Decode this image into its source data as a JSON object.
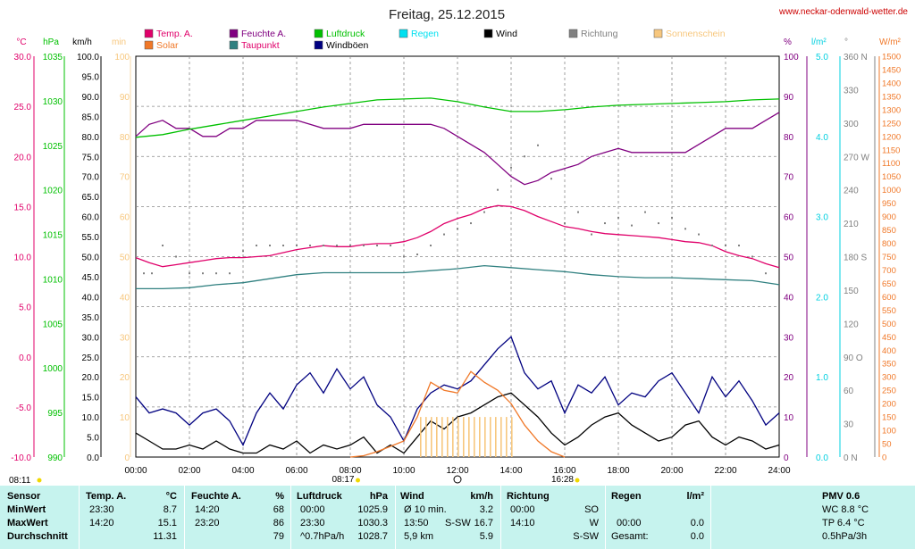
{
  "title": "Freitag, 25.12.2015",
  "site": "www.neckar-odenwald-wetter.de",
  "legend": [
    {
      "label": "Temp. A.",
      "color": "#e0006a",
      "text_color": "#e0006a"
    },
    {
      "label": "Feuchte A.",
      "color": "#800080",
      "text_color": "#800080"
    },
    {
      "label": "Luftdruck",
      "color": "#00c000",
      "text_color": "#00c000"
    },
    {
      "label": "Regen",
      "color": "#00e0f0",
      "text_color": "#00e0f0"
    },
    {
      "label": "Wind",
      "color": "#000000",
      "text_color": "#000000"
    },
    {
      "label": "Richtung",
      "color": "#808080",
      "text_color": "#808080"
    },
    {
      "label": "Sonnenschein",
      "color": "#f7c77e",
      "text_color": "#f7c77e"
    },
    {
      "label": "Solar",
      "color": "#f07828",
      "text_color": "#f07828"
    },
    {
      "label": "Taupunkt",
      "color": "#308080",
      "text_color": "#e0006a"
    },
    {
      "label": "Windböen",
      "color": "#000080",
      "text_color": "#000000"
    }
  ],
  "chart_data": {
    "type": "line",
    "x_ticks": [
      "00:00",
      "02:00",
      "04:00",
      "06:00",
      "08:00",
      "10:00",
      "12:00",
      "14:00",
      "16:00",
      "18:00",
      "20:00",
      "22:00",
      "24:00"
    ],
    "axes": {
      "temp": {
        "unit": "°C",
        "color": "#e0006a",
        "ticks": [
          "30.0",
          "25.0",
          "20.0",
          "15.0",
          "10.0",
          "5.0",
          "0.0",
          "-5.0",
          "-10.0"
        ]
      },
      "pressure": {
        "unit": "hPa",
        "color": "#00c000",
        "ticks": [
          "1035",
          "1030",
          "1025",
          "1020",
          "1015",
          "1010",
          "1005",
          "1000",
          "995",
          "990"
        ]
      },
      "wind": {
        "unit": "km/h",
        "color": "#000000",
        "ticks": [
          "100.0",
          "95.0",
          "90.0",
          "85.0",
          "80.0",
          "75.0",
          "70.0",
          "65.0",
          "60.0",
          "55.0",
          "50.0",
          "45.0",
          "40.0",
          "35.0",
          "30.0",
          "25.0",
          "20.0",
          "15.0",
          "10.0",
          "5.0",
          "0.0"
        ]
      },
      "sun": {
        "unit": "min",
        "color": "#f7c77e",
        "ticks": [
          "100",
          "90",
          "80",
          "70",
          "60",
          "50",
          "40",
          "30",
          "20",
          "10",
          "0"
        ]
      },
      "humidity": {
        "unit": "%",
        "color": "#800080",
        "ticks": [
          "100",
          "90",
          "80",
          "70",
          "60",
          "50",
          "40",
          "30",
          "20",
          "10",
          "0"
        ]
      },
      "rain": {
        "unit": "l/m²",
        "color": "#00d0e0",
        "ticks": [
          "5.0",
          "4.0",
          "3.0",
          "2.0",
          "1.0",
          "0.0"
        ]
      },
      "direction": {
        "unit": "°",
        "color": "#808080",
        "ticks": [
          "360 N",
          "330",
          "300",
          "270 W",
          "240",
          "210",
          "180 S",
          "150",
          "120",
          "90 O",
          "60",
          "30",
          "0 N"
        ]
      },
      "solar": {
        "unit": "W/m²",
        "color": "#f07828",
        "ticks": [
          "1500",
          "1450",
          "1400",
          "1350",
          "1300",
          "1250",
          "1200",
          "1150",
          "1100",
          "1050",
          "1000",
          "950",
          "900",
          "850",
          "800",
          "750",
          "700",
          "650",
          "600",
          "550",
          "500",
          "450",
          "400",
          "350",
          "300",
          "250",
          "200",
          "150",
          "100",
          "50",
          "0"
        ]
      }
    },
    "markers": {
      "sunrise": "08:17",
      "sunset": "16:28",
      "sunrise_left": "08:11"
    },
    "series": [
      {
        "name": "Temp. A.",
        "axis": "temp",
        "color": "#e0006a",
        "x": [
          0,
          0.5,
          1,
          1.5,
          2,
          2.5,
          3,
          3.5,
          4,
          4.5,
          5,
          5.5,
          6,
          6.5,
          7,
          7.5,
          8,
          8.5,
          9,
          9.5,
          10,
          10.5,
          11,
          11.5,
          12,
          12.5,
          13,
          13.5,
          14,
          14.5,
          15,
          15.5,
          16,
          16.5,
          17,
          17.5,
          18,
          18.5,
          19,
          19.5,
          20,
          20.5,
          21,
          21.5,
          22,
          22.5,
          23,
          23.5,
          24
        ],
        "y": [
          9.9,
          9.4,
          9.0,
          9.2,
          9.4,
          9.6,
          9.8,
          9.9,
          9.9,
          10.0,
          10.1,
          10.4,
          10.7,
          10.9,
          11.1,
          11.0,
          11.0,
          11.2,
          11.3,
          11.3,
          11.5,
          11.9,
          12.5,
          13.3,
          13.8,
          14.2,
          14.8,
          15.1,
          15.0,
          14.6,
          14.0,
          13.5,
          13.0,
          12.8,
          12.5,
          12.3,
          12.2,
          12.1,
          12.0,
          11.9,
          11.7,
          11.5,
          11.4,
          11.1,
          10.5,
          10.1,
          9.8,
          9.3,
          8.9
        ]
      },
      {
        "name": "Feuchte A.",
        "axis": "humidity",
        "color": "#800080",
        "x": [
          0,
          0.5,
          1,
          1.5,
          2,
          2.5,
          3,
          3.5,
          4,
          4.5,
          5,
          5.5,
          6,
          6.5,
          7,
          7.5,
          8,
          8.5,
          9,
          9.5,
          10,
          10.5,
          11,
          11.5,
          12,
          12.5,
          13,
          13.5,
          14,
          14.5,
          15,
          15.5,
          16,
          16.5,
          17,
          17.5,
          18,
          18.5,
          19,
          19.5,
          20,
          20.5,
          21,
          21.5,
          22,
          22.5,
          23,
          23.5,
          24
        ],
        "y": [
          80,
          83,
          84,
          82,
          82,
          80,
          80,
          82,
          82,
          84,
          84,
          84,
          84,
          83,
          82,
          82,
          82,
          83,
          83,
          83,
          83,
          83,
          83,
          82,
          80,
          78,
          76,
          73,
          70,
          68,
          69,
          71,
          72,
          73,
          75,
          76,
          77,
          76,
          76,
          76,
          76,
          76,
          78,
          80,
          82,
          82,
          82,
          84,
          86
        ]
      },
      {
        "name": "Luftdruck",
        "axis": "pressure",
        "color": "#00c000",
        "x": [
          0,
          1,
          2,
          3,
          4,
          5,
          6,
          7,
          8,
          9,
          10,
          11,
          12,
          13,
          14,
          15,
          16,
          17,
          18,
          19,
          20,
          21,
          22,
          23,
          24
        ],
        "y": [
          1025.9,
          1026.2,
          1026.8,
          1027.3,
          1027.8,
          1028.3,
          1028.8,
          1029.3,
          1029.7,
          1030.1,
          1030.2,
          1030.3,
          1029.9,
          1029.3,
          1028.8,
          1028.8,
          1029.0,
          1029.3,
          1029.5,
          1029.6,
          1029.7,
          1029.8,
          1029.9,
          1030.1,
          1030.2
        ]
      },
      {
        "name": "Taupunkt",
        "axis": "temp",
        "color": "#308080",
        "x": [
          0,
          1,
          2,
          3,
          4,
          5,
          6,
          7,
          8,
          9,
          10,
          11,
          12,
          13,
          14,
          15,
          16,
          17,
          18,
          19,
          20,
          21,
          22,
          23,
          24
        ],
        "y": [
          6.8,
          6.8,
          6.9,
          7.2,
          7.4,
          7.8,
          8.2,
          8.4,
          8.4,
          8.4,
          8.4,
          8.6,
          8.8,
          9.1,
          8.9,
          8.7,
          8.5,
          8.2,
          8.0,
          7.9,
          7.9,
          7.8,
          7.7,
          7.6,
          7.2
        ]
      },
      {
        "name": "Wind",
        "axis": "wind",
        "color": "#000000",
        "x": [
          0,
          0.5,
          1,
          1.5,
          2,
          2.5,
          3,
          3.5,
          4,
          4.5,
          5,
          5.5,
          6,
          6.5,
          7,
          7.5,
          8,
          8.5,
          9,
          9.5,
          10,
          10.5,
          11,
          11.5,
          12,
          12.5,
          13,
          13.5,
          14,
          14.5,
          15,
          15.5,
          16,
          16.5,
          17,
          17.5,
          18,
          18.5,
          19,
          19.5,
          20,
          20.5,
          21,
          21.5,
          22,
          22.5,
          23,
          23.5,
          24
        ],
        "y": [
          6,
          4,
          2,
          2,
          3,
          2,
          4,
          2,
          1,
          1,
          3,
          2,
          4,
          1,
          3,
          2,
          3,
          5,
          1,
          3,
          1,
          5,
          9,
          7,
          10,
          11,
          13,
          15,
          16,
          13,
          10,
          6,
          3,
          5,
          8,
          10,
          11,
          8,
          6,
          4,
          5,
          8,
          9,
          5,
          3,
          5,
          4,
          2,
          3
        ]
      },
      {
        "name": "Windböen",
        "axis": "wind",
        "color": "#000080",
        "x": [
          0,
          0.5,
          1,
          1.5,
          2,
          2.5,
          3,
          3.5,
          4,
          4.5,
          5,
          5.5,
          6,
          6.5,
          7,
          7.5,
          8,
          8.5,
          9,
          9.5,
          10,
          10.5,
          11,
          11.5,
          12,
          12.5,
          13,
          13.5,
          14,
          14.5,
          15,
          15.5,
          16,
          16.5,
          17,
          17.5,
          18,
          18.5,
          19,
          19.5,
          20,
          20.5,
          21,
          21.5,
          22,
          22.5,
          23,
          23.5,
          24
        ],
        "y": [
          15,
          11,
          12,
          11,
          8,
          11,
          12,
          9,
          3,
          11,
          16,
          12,
          18,
          21,
          16,
          22,
          17,
          20,
          13,
          10,
          4,
          12,
          16,
          18,
          17,
          19,
          23,
          27,
          30,
          21,
          17,
          19,
          11,
          18,
          16,
          20,
          13,
          16,
          15,
          19,
          21,
          16,
          11,
          20,
          15,
          19,
          14,
          8,
          11
        ]
      },
      {
        "name": "Solar",
        "axis": "solar",
        "color": "#f07828",
        "x": [
          8,
          8.5,
          9,
          9.5,
          10,
          10.5,
          11,
          11.5,
          12,
          12.5,
          13,
          13.5,
          14,
          14.5,
          15,
          15.5,
          16
        ],
        "y": [
          0,
          5,
          20,
          40,
          60,
          150,
          280,
          250,
          240,
          320,
          280,
          250,
          200,
          120,
          60,
          20,
          0
        ]
      },
      {
        "name": "Sonnenschein",
        "axis": "sun",
        "color": "#f7c77e",
        "x": [
          10.6,
          10.8,
          11,
          11.2,
          11.4,
          11.6,
          11.8,
          12,
          12.2,
          12.4,
          12.6,
          12.8,
          13,
          13.2,
          13.4,
          13.6,
          13.8,
          14
        ],
        "y": [
          10,
          10,
          10,
          10,
          10,
          10,
          10,
          10,
          10,
          10,
          10,
          10,
          10,
          10,
          10,
          10,
          10,
          10
        ]
      },
      {
        "name": "Richtung",
        "axis": "direction",
        "color": "#808080",
        "x": [
          0.3,
          0.6,
          1,
          1.5,
          2,
          2.5,
          3,
          3.5,
          4,
          4.5,
          5,
          5.5,
          6,
          6.5,
          7,
          7.5,
          8,
          8.5,
          9,
          9.5,
          10,
          10.5,
          11,
          11.5,
          12,
          12.5,
          13,
          13.5,
          14,
          14.5,
          15,
          15.5,
          16,
          16.5,
          17,
          17.5,
          18,
          18.5,
          19,
          19.5,
          20,
          20.5,
          21,
          21.5,
          22,
          22.5,
          23,
          23.5
        ],
        "y": [
          165,
          165,
          190,
          180,
          165,
          165,
          165,
          165,
          185,
          190,
          190,
          190,
          190,
          190,
          190,
          190,
          190,
          190,
          190,
          190,
          180,
          182,
          190,
          200,
          205,
          210,
          220,
          240,
          260,
          270,
          280,
          250,
          210,
          220,
          200,
          210,
          215,
          208,
          220,
          210,
          215,
          205,
          200,
          190,
          190,
          190,
          180,
          165
        ]
      }
    ]
  },
  "table": {
    "headers": {
      "sensor": "Sensor",
      "temp": "Temp. A.",
      "temp_unit": "°C",
      "hum": "Feuchte A.",
      "hum_unit": "%",
      "press": "Luftdruck",
      "press_unit": "hPa",
      "wind": "Wind",
      "wind_unit": "km/h",
      "dir": "Richtung",
      "rain": "Regen",
      "rain_unit": "l/m²",
      "pmv": "PMV 0.6"
    },
    "row_labels": [
      "MinWert",
      "MaxWert",
      "Durchschnitt"
    ],
    "temp": [
      {
        "t": "23:30",
        "v": "8.7"
      },
      {
        "t": "14:20",
        "v": "15.1"
      },
      {
        "t": "",
        "v": "11.31"
      }
    ],
    "hum": [
      {
        "t": "14:20",
        "v": "68"
      },
      {
        "t": "23:20",
        "v": "86"
      },
      {
        "t": "",
        "v": "79"
      }
    ],
    "press": [
      {
        "t": "00:00",
        "v": "1025.9"
      },
      {
        "t": "23:30",
        "v": "1030.3"
      },
      {
        "t": "^0.7hPa/h",
        "v": "1028.7"
      }
    ],
    "wind": [
      {
        "t": "Ø 10 min.",
        "v": "3.2"
      },
      {
        "t": "13:50",
        "m": "S-SW",
        "v": "16.7"
      },
      {
        "t": "5,9 km",
        "v": "5.9"
      }
    ],
    "dir": [
      {
        "t": "00:00",
        "v": "SO"
      },
      {
        "t": "14:10",
        "v": "W"
      },
      {
        "t": "",
        "v": "S-SW"
      }
    ],
    "rain": [
      {
        "t": "",
        "v": ""
      },
      {
        "t": "00:00",
        "v": "0.0"
      },
      {
        "t": "Gesamt:",
        "v": "0.0"
      }
    ],
    "pmv": [
      "WC 8.8 °C",
      "TP 6.4 °C",
      "0.5hPa/3h"
    ]
  }
}
